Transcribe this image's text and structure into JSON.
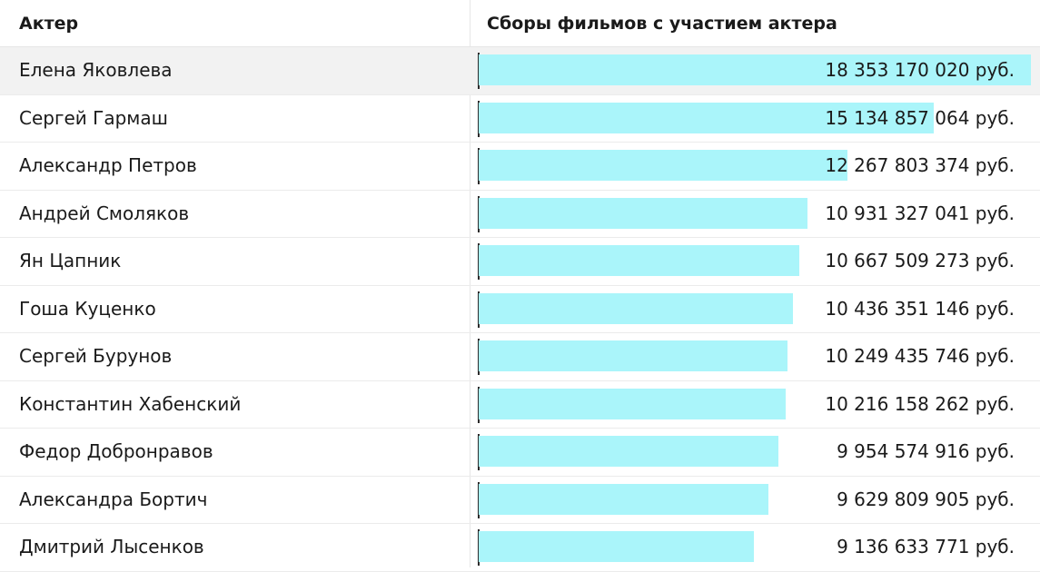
{
  "table": {
    "columns": [
      "Актер",
      "Сборы фильмов с участием актера"
    ],
    "highlighted_row": 0,
    "bar_color": "#aaf5fa",
    "bar_max": 18353170020,
    "rows": [
      {
        "name": "Елена Яковлева",
        "value": 18353170020,
        "label": "18 353 170 020 руб."
      },
      {
        "name": "Сергей Гармаш",
        "value": 15134857064,
        "label": "15 134 857 064 руб."
      },
      {
        "name": "Александр Петров",
        "value": 12267803374,
        "label": "12 267 803 374 руб."
      },
      {
        "name": "Андрей Смоляков",
        "value": 10931327041,
        "label": "10 931 327 041 руб."
      },
      {
        "name": "Ян Цапник",
        "value": 10667509273,
        "label": "10 667 509 273 руб."
      },
      {
        "name": "Гоша Куценко",
        "value": 10436351146,
        "label": "10 436 351 146 руб."
      },
      {
        "name": "Сергей Бурунов",
        "value": 10249435746,
        "label": "10 249 435 746 руб."
      },
      {
        "name": "Константин Хабенский",
        "value": 10216158262,
        "label": "10 216 158 262 руб."
      },
      {
        "name": "Федор Добронравов",
        "value": 9954574916,
        "label": "9 954 574 916 руб."
      },
      {
        "name": "Александра Бортич",
        "value": 9629809905,
        "label": "9 629 809 905 руб."
      },
      {
        "name": "Дмитрий Лысенков",
        "value": 9136633771,
        "label": "9 136 633 771 руб."
      }
    ]
  }
}
